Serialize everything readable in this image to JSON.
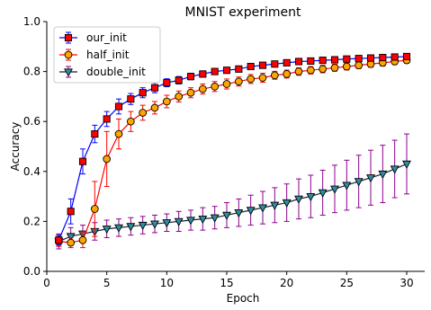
{
  "chart_data": {
    "type": "line",
    "title": "MNIST experiment",
    "xlabel": "Epoch",
    "ylabel": "Accuracy",
    "xlim": [
      0,
      31.5
    ],
    "ylim": [
      0.0,
      1.0
    ],
    "xticks": [
      0,
      5,
      10,
      15,
      20,
      25,
      30
    ],
    "yticks": [
      0.0,
      0.2,
      0.4,
      0.6,
      0.8,
      1.0
    ],
    "grid": false,
    "legend_position": "top-left",
    "x": [
      1,
      2,
      3,
      4,
      5,
      6,
      7,
      8,
      9,
      10,
      11,
      12,
      13,
      14,
      15,
      16,
      17,
      18,
      19,
      20,
      21,
      22,
      23,
      24,
      25,
      26,
      27,
      28,
      29,
      30
    ],
    "series": [
      {
        "name": "our_init",
        "marker": "square",
        "line_color": "#0000ff",
        "marker_color": "#ff0000",
        "values": [
          0.125,
          0.24,
          0.44,
          0.55,
          0.61,
          0.66,
          0.69,
          0.715,
          0.735,
          0.755,
          0.765,
          0.78,
          0.79,
          0.8,
          0.805,
          0.81,
          0.82,
          0.825,
          0.83,
          0.835,
          0.84,
          0.842,
          0.845,
          0.847,
          0.85,
          0.852,
          0.854,
          0.856,
          0.858,
          0.86
        ],
        "errors": [
          0.02,
          0.05,
          0.05,
          0.035,
          0.03,
          0.03,
          0.022,
          0.02,
          0.02,
          0.016,
          0.015,
          0.013,
          0.012,
          0.011,
          0.011,
          0.01,
          0.01,
          0.01,
          0.009,
          0.009,
          0.009,
          0.008,
          0.008,
          0.008,
          0.008,
          0.008,
          0.008,
          0.008,
          0.008,
          0.008
        ]
      },
      {
        "name": "half_init",
        "marker": "circle",
        "line_color": "#ff0000",
        "marker_color": "#ffa500",
        "values": [
          0.12,
          0.115,
          0.125,
          0.25,
          0.45,
          0.55,
          0.6,
          0.635,
          0.655,
          0.68,
          0.7,
          0.715,
          0.73,
          0.74,
          0.75,
          0.76,
          0.77,
          0.775,
          0.785,
          0.79,
          0.8,
          0.805,
          0.81,
          0.815,
          0.82,
          0.825,
          0.83,
          0.835,
          0.84,
          0.845
        ],
        "errors": [
          0.02,
          0.02,
          0.03,
          0.11,
          0.11,
          0.06,
          0.04,
          0.03,
          0.025,
          0.025,
          0.022,
          0.02,
          0.02,
          0.02,
          0.02,
          0.018,
          0.018,
          0.018,
          0.016,
          0.016,
          0.015,
          0.015,
          0.015,
          0.014,
          0.014,
          0.013,
          0.013,
          0.013,
          0.012,
          0.012
        ]
      },
      {
        "name": "double_init",
        "marker": "triangle-down",
        "line_color": "#1f1f3f",
        "marker_color": "#2f8f9f",
        "error_color": "#8b008b",
        "values": [
          0.12,
          0.14,
          0.15,
          0.16,
          0.17,
          0.175,
          0.18,
          0.185,
          0.19,
          0.195,
          0.2,
          0.205,
          0.21,
          0.215,
          0.225,
          0.235,
          0.245,
          0.255,
          0.265,
          0.275,
          0.29,
          0.3,
          0.315,
          0.33,
          0.345,
          0.36,
          0.375,
          0.39,
          0.41,
          0.43
        ],
        "errors": [
          0.03,
          0.035,
          0.035,
          0.035,
          0.035,
          0.035,
          0.035,
          0.035,
          0.035,
          0.035,
          0.04,
          0.04,
          0.045,
          0.045,
          0.05,
          0.055,
          0.06,
          0.065,
          0.07,
          0.075,
          0.08,
          0.085,
          0.09,
          0.095,
          0.1,
          0.105,
          0.11,
          0.115,
          0.115,
          0.12
        ]
      }
    ]
  }
}
